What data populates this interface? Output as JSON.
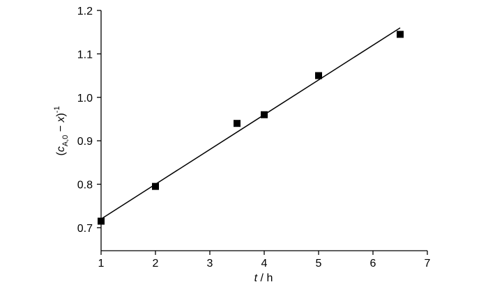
{
  "chart_data": {
    "type": "scatter",
    "x": [
      1,
      2,
      3.5,
      4,
      5,
      6.5
    ],
    "values": [
      0.715,
      0.795,
      0.94,
      0.96,
      1.05,
      1.145
    ],
    "color": "#000000",
    "fit": {
      "x": [
        1,
        6.5
      ],
      "values": [
        0.72,
        1.16
      ],
      "color": "#000000"
    },
    "xlim": [
      1,
      7
    ],
    "xticks": [
      1,
      2,
      3,
      4,
      5,
      6,
      7
    ],
    "ylim": [
      0.647,
      1.2
    ],
    "yticks": [
      0.7,
      0.8,
      0.9,
      {
        "value": 1,
        "label": "1.0"
      },
      1.1,
      1.2
    ],
    "xlabel": [
      "t",
      " / h"
    ],
    "ylabel": [
      "(",
      "c",
      "A,0",
      " − ",
      "x",
      ")",
      "-1"
    ]
  }
}
